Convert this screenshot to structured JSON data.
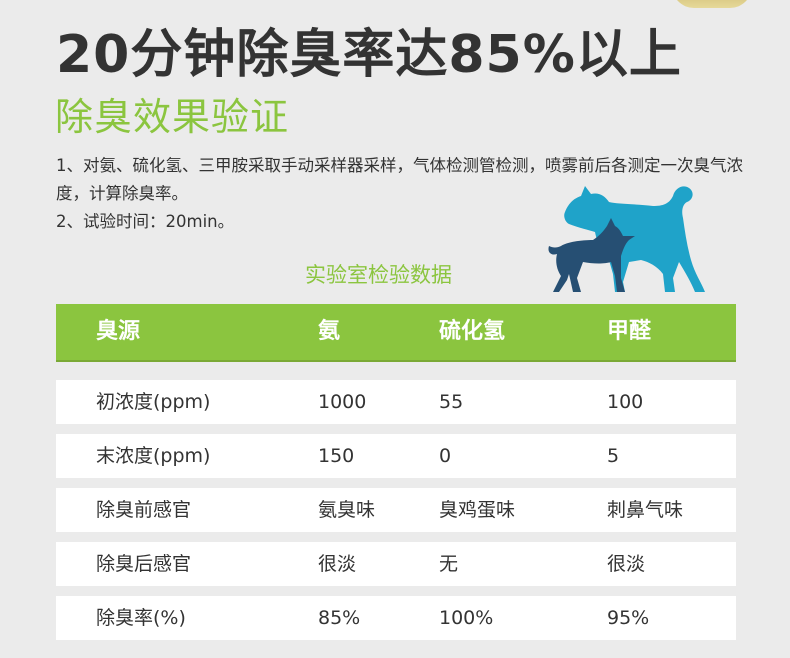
{
  "headline": "20分钟除臭率达85%以上",
  "section_title": "除臭效果验证",
  "description": [
    "1、对氨、硫化氢、三甲胺采取手动采样器采样，气体检测管检测，喷雾前后各测定一次臭气浓度，计算除臭率。",
    "2、试验时间：20min。"
  ],
  "table_caption": "实验室检验数据",
  "table": {
    "headers": [
      "臭源",
      "氨",
      "硫化氢",
      "甲醛"
    ],
    "rows": [
      [
        "初浓度(ppm)",
        "1000",
        "55",
        "100"
      ],
      [
        "末浓度(ppm)",
        "150",
        "0",
        "5"
      ],
      [
        "除臭前感官",
        "氨臭味",
        "臭鸡蛋味",
        "刺鼻气味"
      ],
      [
        "除臭后感官",
        "很淡",
        "无",
        "很淡"
      ],
      [
        "除臭率(%)",
        "85%",
        "100%",
        "95%"
      ]
    ]
  },
  "illustration": {
    "icon": "dog-icon",
    "colors": {
      "big_dog": "#1fa3c9",
      "small_dog": "#264f73"
    }
  },
  "accent_color": "#8bc53f"
}
